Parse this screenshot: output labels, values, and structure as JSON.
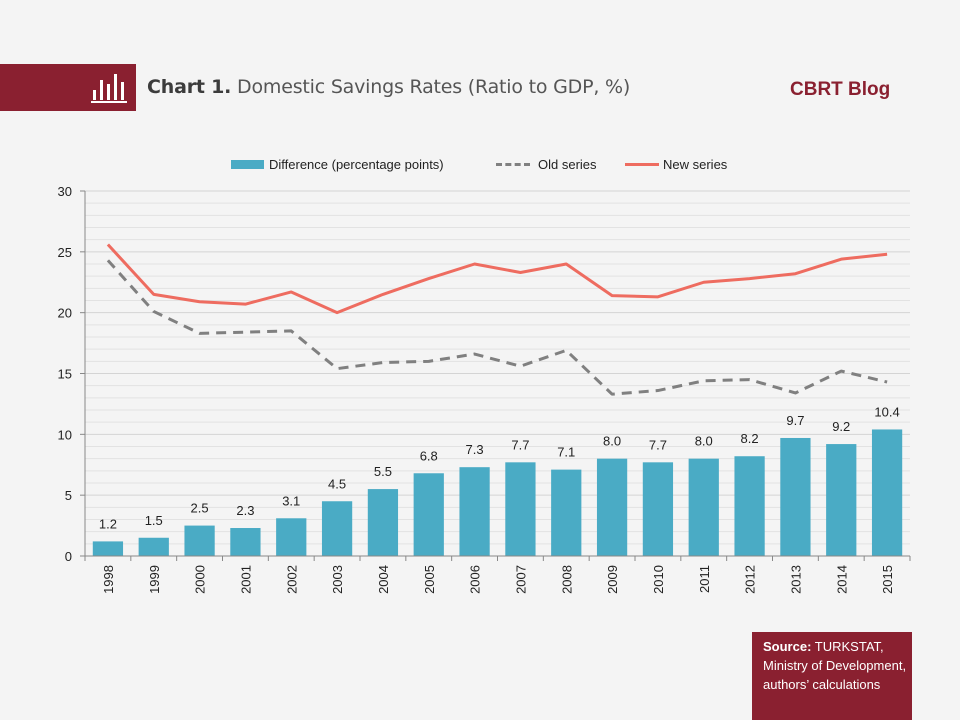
{
  "header": {
    "chart_number": "Chart 1.",
    "title": "Domestic Savings Rates (Ratio to GDP, %)",
    "brand": "CBRT Blog",
    "icon": "bar-chart-icon"
  },
  "colors": {
    "brand": "#8a2030",
    "bar": "#4aabc5",
    "old_series": "#808080",
    "new_series": "#ee6c60"
  },
  "source": {
    "label": "Source:",
    "text": "TURKSTAT, Ministry of Development, authors’ calculations"
  },
  "chart_data": {
    "type": "bar",
    "title": "Domestic Savings Rates (Ratio to GDP, %)",
    "xlabel": "",
    "ylabel": "",
    "ylim": [
      0,
      30
    ],
    "yticks": [
      0,
      5,
      10,
      15,
      20,
      25,
      30
    ],
    "minor_grid_step": 1,
    "grid": true,
    "legend_position": "top",
    "categories": [
      "1998",
      "1999",
      "2000",
      "2001",
      "2002",
      "2003",
      "2004",
      "2005",
      "2006",
      "2007",
      "2008",
      "2009",
      "2010",
      "2011",
      "2012",
      "2013",
      "2014",
      "2015"
    ],
    "series": [
      {
        "name": "Difference (percentage points)",
        "type": "bar",
        "values": [
          1.2,
          1.5,
          2.5,
          2.3,
          3.1,
          4.5,
          5.5,
          6.8,
          7.3,
          7.7,
          7.1,
          8.0,
          7.7,
          8.0,
          8.2,
          9.7,
          9.2,
          10.4
        ],
        "labels": [
          "1.2",
          "1.5",
          "2.5",
          "2.3",
          "3.1",
          "4.5",
          "5.5",
          "6.8",
          "7.3",
          "7.7",
          "7.1",
          "8.0",
          "7.7",
          "8.0",
          "8.2",
          "9.7",
          "9.2",
          "10.4"
        ]
      },
      {
        "name": "Old series",
        "type": "line",
        "style": "dashed",
        "values": [
          24.3,
          20.1,
          18.3,
          18.4,
          18.5,
          15.4,
          15.9,
          16.0,
          16.6,
          15.6,
          16.9,
          13.3,
          13.6,
          14.4,
          14.5,
          13.4,
          15.2,
          14.3
        ]
      },
      {
        "name": "New series",
        "type": "line",
        "style": "solid",
        "values": [
          25.6,
          21.5,
          20.9,
          20.7,
          21.7,
          20.0,
          21.5,
          22.8,
          24.0,
          23.3,
          24.0,
          21.4,
          21.3,
          22.5,
          22.8,
          23.2,
          24.4,
          24.8
        ]
      }
    ]
  }
}
